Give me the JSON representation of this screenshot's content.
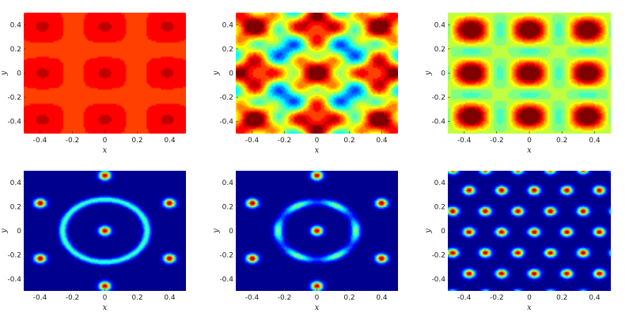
{
  "figure": {
    "panel_count": 6,
    "grid": "2x3"
  },
  "colormap": [
    "#00008f",
    "#0000ff",
    "#0080ff",
    "#00ffff",
    "#80ff80",
    "#ffff00",
    "#ff8000",
    "#ff0000",
    "#800000"
  ],
  "chart_data": [
    {
      "type": "heatmap",
      "panel": "top-left",
      "xlabel": "x",
      "ylabel": "y",
      "xlim": [
        -0.5,
        0.5
      ],
      "ylim": [
        -0.5,
        0.5
      ],
      "xticks": [
        "-0.4",
        "-0.2",
        "0",
        "0.2",
        "0.4"
      ],
      "yticks": [
        "0.4",
        "0.2",
        "0",
        "-0.2",
        "-0.4"
      ],
      "pattern": "near-uniform high field with cross-shaped modulation",
      "level_range": [
        0.74,
        0.96
      ]
    },
    {
      "type": "heatmap",
      "panel": "top-middle",
      "xlabel": "x",
      "ylabel": "y",
      "xlim": [
        -0.5,
        0.5
      ],
      "ylim": [
        -0.5,
        0.5
      ],
      "xticks": [
        "-0.4",
        "-0.2",
        "0",
        "0.2",
        "0.4"
      ],
      "yticks": [
        "0.4",
        "0.2",
        "0",
        "-0.2",
        "-0.4"
      ],
      "pattern": "square-lattice interference stripes",
      "level_range": [
        0.25,
        1.0
      ]
    },
    {
      "type": "heatmap",
      "panel": "top-right",
      "xlabel": "x",
      "ylabel": "y",
      "xlim": [
        -0.5,
        0.5
      ],
      "ylim": [
        -0.5,
        0.5
      ],
      "xticks": [
        "-0.4",
        "-0.2",
        "0",
        "0.2",
        "0.4"
      ],
      "yticks": [
        "0.4",
        "0.2",
        "0",
        "-0.2",
        "-0.4"
      ],
      "pattern": "square lattice of peaks, strongest at corners",
      "level_range": [
        0.3,
        1.0
      ]
    },
    {
      "type": "heatmap",
      "panel": "bottom-left",
      "xlabel": "x",
      "ylabel": "y",
      "xlim": [
        -0.5,
        0.5
      ],
      "ylim": [
        -0.5,
        0.5
      ],
      "xticks": [
        "-0.4",
        "-0.2",
        "0",
        "0.2",
        "0.4"
      ],
      "yticks": [
        "0.4",
        "0.2",
        "0",
        "-0.2",
        "-0.4"
      ],
      "pattern": "central spot surrounded by a ring, outer hexagonal spots",
      "level_range": [
        0.0,
        1.0
      ]
    },
    {
      "type": "heatmap",
      "panel": "bottom-middle",
      "xlabel": "x",
      "ylabel": "y",
      "xlim": [
        -0.5,
        0.5
      ],
      "ylim": [
        -0.5,
        0.5
      ],
      "xticks": [
        "-0.4",
        "-0.2",
        "0",
        "0.2",
        "0.4"
      ],
      "yticks": [
        "0.4",
        "0.2",
        "0",
        "-0.2",
        "-0.4"
      ],
      "pattern": "central spot with fragmented hexagonal ring",
      "level_range": [
        0.0,
        1.0
      ]
    },
    {
      "type": "heatmap",
      "panel": "bottom-right",
      "xlabel": "x",
      "ylabel": "y",
      "xlim": [
        -0.5,
        0.5
      ],
      "ylim": [
        -0.5,
        0.5
      ],
      "xticks": [
        "-0.4",
        "-0.2",
        "0",
        "0.2",
        "0.4"
      ],
      "yticks": [
        "0.4",
        "0.2",
        "0",
        "-0.2",
        "-0.4"
      ],
      "pattern": "triangular (hexagonal) lattice of isolated spots",
      "level_range": [
        0.0,
        1.0
      ]
    }
  ]
}
